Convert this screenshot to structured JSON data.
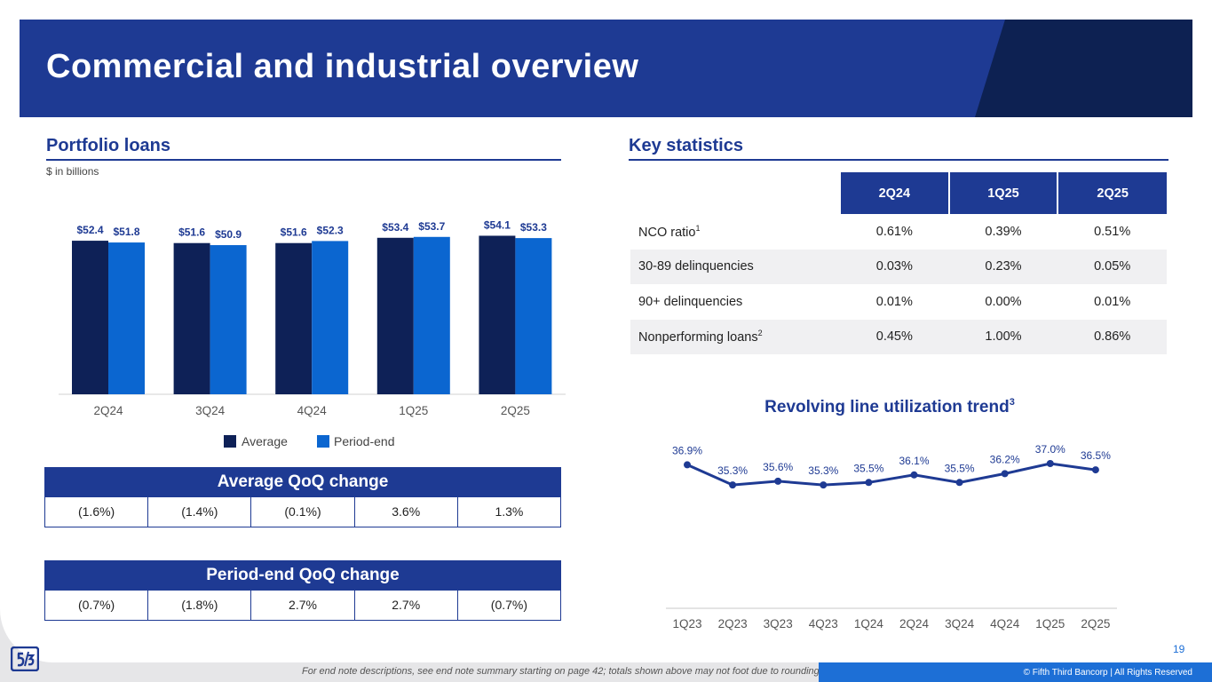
{
  "title": "Commercial and industrial overview",
  "colors": {
    "navy": "#1e3a93",
    "dark_navy": "#0d2152",
    "avg_bar": "#0e2157",
    "pe_bar": "#0b66d0",
    "line": "#1e3a93",
    "footer": "#1d6fd6"
  },
  "portfolio": {
    "title": "Portfolio loans",
    "unit_note": "$ in billions",
    "legend_average": "Average",
    "legend_period_end": "Period-end"
  },
  "key_stats": {
    "title": "Key statistics",
    "columns": [
      "2Q24",
      "1Q25",
      "2Q25"
    ],
    "rows": [
      {
        "label": "NCO ratio",
        "sup": "1",
        "values": [
          "0.61%",
          "0.39%",
          "0.51%"
        ]
      },
      {
        "label": "30-89 delinquencies",
        "sup": "",
        "values": [
          "0.03%",
          "0.23%",
          "0.05%"
        ]
      },
      {
        "label": "90+ delinquencies",
        "sup": "",
        "values": [
          "0.01%",
          "0.00%",
          "0.01%"
        ]
      },
      {
        "label": "Nonperforming loans",
        "sup": "2",
        "values": [
          "0.45%",
          "1.00%",
          "0.86%"
        ]
      }
    ]
  },
  "average_qoq": {
    "title": "Average QoQ change",
    "values": [
      "(1.6%)",
      "(1.4%)",
      "(0.1%)",
      "3.6%",
      "1.3%"
    ]
  },
  "period_end_qoq": {
    "title": "Period-end QoQ change",
    "values": [
      "(0.7%)",
      "(1.8%)",
      "2.7%",
      "2.7%",
      "(0.7%)"
    ]
  },
  "chart_data": [
    {
      "type": "bar",
      "title": "Portfolio loans",
      "ylabel": "$ in billions",
      "categories": [
        "2Q24",
        "3Q24",
        "4Q24",
        "1Q25",
        "2Q25"
      ],
      "series": [
        {
          "name": "Average",
          "values": [
            52.4,
            51.6,
            51.6,
            53.4,
            54.1
          ],
          "labels": [
            "$52.4",
            "$51.6",
            "$51.6",
            "$53.4",
            "$54.1"
          ]
        },
        {
          "name": "Period-end",
          "values": [
            51.8,
            50.9,
            52.3,
            53.7,
            53.3
          ],
          "labels": [
            "$51.8",
            "$50.9",
            "$52.3",
            "$53.7",
            "$53.3"
          ]
        }
      ],
      "ylim": [
        0,
        56
      ],
      "legend": "bottom"
    },
    {
      "type": "line",
      "title": "Revolving line utilization trend",
      "title_sup": "3",
      "x": [
        "1Q23",
        "2Q23",
        "3Q23",
        "4Q23",
        "1Q24",
        "2Q24",
        "3Q24",
        "4Q24",
        "1Q25",
        "2Q25"
      ],
      "values": [
        36.9,
        35.3,
        35.6,
        35.3,
        35.5,
        36.1,
        35.5,
        36.2,
        37.0,
        36.5
      ],
      "labels": [
        "36.9%",
        "35.3%",
        "35.6%",
        "35.3%",
        "35.5%",
        "36.1%",
        "35.5%",
        "36.2%",
        "37.0%",
        "36.5%"
      ],
      "ylim": [
        20,
        40
      ]
    }
  ],
  "footer": {
    "note": "For end note descriptions, see end note summary starting on page 42; totals shown above may not foot due to rounding",
    "copyright": "© Fifth Third Bancorp | All Rights Reserved",
    "page_number": "19"
  }
}
